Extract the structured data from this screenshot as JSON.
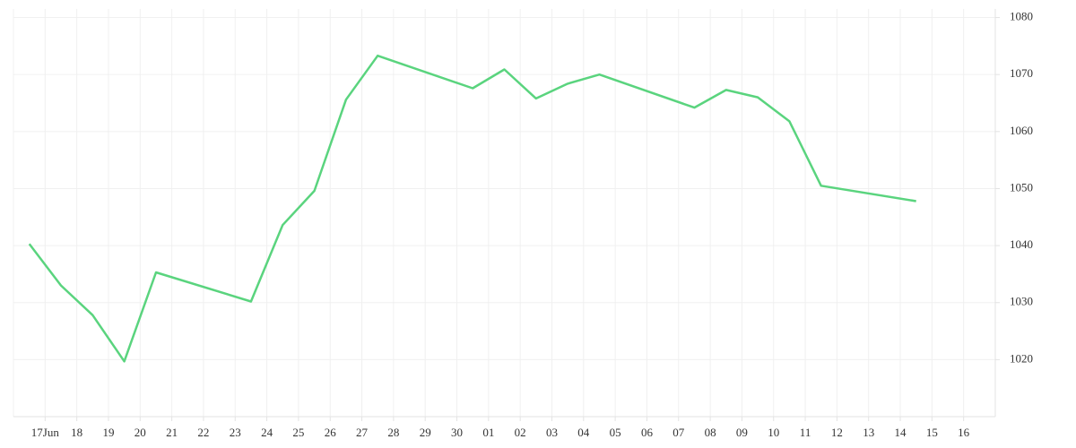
{
  "chart_data": {
    "type": "line",
    "categories": [
      "17Jun",
      "18",
      "19",
      "20",
      "21",
      "22",
      "23",
      "24",
      "25",
      "26",
      "27",
      "28",
      "29",
      "30",
      "01",
      "02",
      "03",
      "04",
      "05",
      "06",
      "07",
      "08",
      "09",
      "10",
      "11",
      "12",
      "13",
      "14",
      "15",
      "16"
    ],
    "x": [
      "17Jun",
      "18",
      "19",
      "20",
      "21",
      "24",
      "25",
      "26",
      "27",
      "28",
      "01",
      "02",
      "03",
      "04",
      "05",
      "08",
      "09",
      "10",
      "11",
      "12",
      "15"
    ],
    "values": [
      1040.3,
      1033,
      1027.8,
      1019.7,
      1035.3,
      1030.2,
      1043.6,
      1049.6,
      1065.6,
      1073.3,
      1067.6,
      1070.9,
      1065.8,
      1068.4,
      1070,
      1064.2,
      1067.3,
      1066,
      1061.8,
      1050.5,
      1047.8
    ],
    "color": "#5ad47e",
    "ylim": [
      1010,
      1081.5
    ],
    "yticks": [
      1020,
      1030,
      1040,
      1050,
      1060,
      1070,
      1080
    ],
    "grid": true,
    "y_axis_side": "right"
  }
}
